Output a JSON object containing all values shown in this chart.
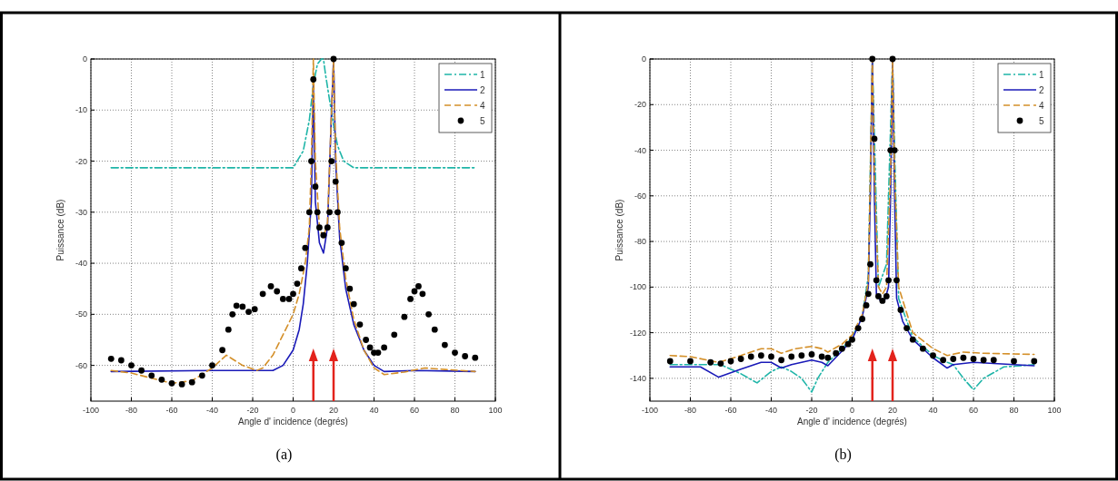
{
  "chart_data": [
    {
      "type": "line",
      "xlabel": "Angle d' incidence (degrés)",
      "ylabel": "Puissance (dB)",
      "xlim": [
        -100,
        100
      ],
      "xticks": [
        -100,
        -80,
        -60,
        -40,
        -20,
        0,
        20,
        40,
        60,
        80,
        100
      ],
      "ylim": [
        -67,
        0
      ],
      "yticks": [
        -60,
        -50,
        -40,
        -30,
        -20,
        -10,
        0
      ],
      "grid": true,
      "legend": "top right",
      "annotations": [
        "(a)"
      ],
      "ref_lines": [
        {
          "axis": "x",
          "value": 10,
          "color": "#e3231c"
        },
        {
          "axis": "x",
          "value": 20,
          "color": "#e3231c"
        }
      ],
      "series": [
        {
          "name": "1",
          "color": "#1fb5a8",
          "line_style": "dashdot",
          "x": [
            -90,
            -60,
            -30,
            0,
            5,
            8,
            10,
            12,
            14,
            15,
            16,
            18,
            20,
            22,
            25,
            30,
            60,
            90
          ],
          "values": [
            -21.3,
            -21.3,
            -21.3,
            -21.3,
            -18,
            -12,
            -5,
            -1,
            0,
            0,
            -3,
            -8,
            -13,
            -17,
            -20,
            -21.3,
            -21.3,
            -21.3
          ]
        },
        {
          "name": "2",
          "color": "#1a1ab8",
          "line_style": "solid",
          "x": [
            -90,
            -40,
            -10,
            -5,
            0,
            3,
            5,
            7,
            9,
            10,
            11,
            13,
            15,
            17,
            19,
            20,
            21,
            23,
            26,
            30,
            35,
            40,
            45,
            60,
            90
          ],
          "values": [
            -61.2,
            -61,
            -61,
            -60,
            -57,
            -53,
            -48,
            -40,
            -28,
            -5,
            -28,
            -36,
            -38,
            -33,
            -10,
            0,
            -20,
            -35,
            -45,
            -52,
            -57,
            -60,
            -61.2,
            -61,
            -61.2
          ]
        },
        {
          "name": "4",
          "color": "#d4902a",
          "line_style": "dashed",
          "x": [
            -90,
            -80,
            -70,
            -60,
            -50,
            -40,
            -33,
            -25,
            -18,
            -15,
            -10,
            -5,
            0,
            3,
            6,
            8,
            9,
            10,
            11,
            13,
            15,
            17,
            19,
            20,
            21,
            23,
            26,
            30,
            35,
            40,
            45,
            55,
            65,
            75,
            90
          ],
          "values": [
            -61,
            -61.5,
            -62.5,
            -63.5,
            -63,
            -60.5,
            -58,
            -60,
            -61,
            -60.5,
            -58,
            -54,
            -50,
            -46,
            -40,
            -33,
            -20,
            0,
            -20,
            -33,
            -35,
            -32,
            -10,
            0,
            -18,
            -33,
            -43,
            -51,
            -57,
            -60.5,
            -61.8,
            -61.3,
            -60.5,
            -60.8,
            -61.2
          ]
        },
        {
          "name": "5",
          "color": "#000000",
          "type": "scatter",
          "marker": "circle",
          "x": [
            -90,
            -85,
            -80,
            -75,
            -70,
            -65,
            -60,
            -55,
            -50,
            -45,
            -40,
            -35,
            -32,
            -30,
            -28,
            -25,
            -22,
            -19,
            -15,
            -11,
            -8,
            -5,
            -2,
            0,
            2,
            4,
            6,
            8,
            9,
            10,
            11,
            12,
            13,
            15,
            17,
            18,
            19,
            20,
            21,
            22,
            24,
            26,
            28,
            30,
            33,
            36,
            38,
            40,
            42,
            45,
            50,
            55,
            58,
            60,
            62,
            64,
            67,
            70,
            75,
            80,
            85,
            90
          ],
          "values": [
            -58.7,
            -59,
            -60,
            -61,
            -62,
            -62.8,
            -63.5,
            -63.7,
            -63.3,
            -62,
            -60,
            -57,
            -53,
            -50,
            -48.3,
            -48.5,
            -49.5,
            -49,
            -46,
            -44.5,
            -45.5,
            -47,
            -47,
            -46,
            -44,
            -41,
            -37,
            -30,
            -20,
            -4,
            -25,
            -30,
            -33,
            -34.5,
            -33,
            -30,
            -20,
            0,
            -24,
            -30,
            -36,
            -41,
            -45,
            -48,
            -52,
            -55,
            -56.5,
            -57.5,
            -57.5,
            -56.5,
            -54,
            -50.5,
            -47,
            -45.5,
            -44.5,
            -46,
            -50,
            -53,
            -56,
            -57.5,
            -58.2,
            -58.5
          ]
        }
      ]
    },
    {
      "type": "line",
      "xlabel": "Angle d' incidence (degrés)",
      "ylabel": "Puissance (dB)",
      "xlim": [
        -100,
        100
      ],
      "xticks": [
        -100,
        -80,
        -60,
        -40,
        -20,
        0,
        20,
        40,
        60,
        80,
        100
      ],
      "ylim": [
        -150,
        0
      ],
      "yticks": [
        -140,
        -120,
        -100,
        -80,
        -60,
        -40,
        -20,
        0
      ],
      "grid": true,
      "legend": "top right",
      "annotations": [
        "(b)"
      ],
      "ref_lines": [
        {
          "axis": "x",
          "value": 10,
          "color": "#e3231c"
        },
        {
          "axis": "x",
          "value": 20,
          "color": "#e3231c"
        }
      ],
      "series": [
        {
          "name": "1",
          "color": "#1fb5a8",
          "line_style": "dashdot",
          "x": [
            -90,
            -65,
            -55,
            -47,
            -40,
            -35,
            -30,
            -25,
            -20,
            -17,
            -12,
            -5,
            0,
            5,
            8,
            10,
            13,
            15,
            17,
            19,
            20,
            21,
            23,
            30,
            40,
            47,
            50,
            55,
            60,
            65,
            75,
            90
          ],
          "values": [
            -134,
            -134,
            -138,
            -142,
            -137,
            -135,
            -137,
            -140,
            -146,
            -140,
            -133,
            -127,
            -122,
            -113,
            -95,
            0,
            -100,
            -95,
            -90,
            -30,
            0,
            -40,
            -105,
            -122,
            -130,
            -133,
            -134,
            -140,
            -145,
            -140,
            -135,
            -134
          ]
        },
        {
          "name": "2",
          "color": "#1a1ab8",
          "line_style": "solid",
          "x": [
            -90,
            -75,
            -66,
            -55,
            -45,
            -40,
            -35,
            -30,
            -20,
            -15,
            -12,
            -5,
            0,
            5,
            8,
            9,
            10,
            11,
            12,
            14,
            16,
            18,
            19,
            20,
            21,
            22,
            25,
            30,
            40,
            47,
            50,
            60,
            90
          ],
          "values": [
            -135,
            -135,
            -139.5,
            -136,
            -133,
            -133,
            -135.5,
            -134,
            -132,
            -133,
            -134.5,
            -128,
            -123,
            -113,
            -100,
            -60,
            0,
            -60,
            -103,
            -106,
            -106,
            -100,
            -60,
            0,
            -60,
            -105,
            -115,
            -123,
            -131,
            -135.5,
            -134,
            -133,
            -134.5
          ]
        },
        {
          "name": "4",
          "color": "#d4902a",
          "line_style": "dashed",
          "x": [
            -90,
            -80,
            -66,
            -55,
            -45,
            -40,
            -35,
            -28,
            -20,
            -15,
            -12,
            -5,
            0,
            5,
            8,
            9,
            10,
            11,
            13,
            15,
            17,
            19,
            20,
            21,
            23,
            30,
            40,
            47,
            55,
            65,
            90
          ],
          "values": [
            -130,
            -130.5,
            -133,
            -130,
            -127,
            -127,
            -129,
            -127,
            -126,
            -127,
            -128.5,
            -125,
            -121,
            -112,
            -98,
            -50,
            0,
            -50,
            -100,
            -103,
            -100,
            -50,
            0,
            -50,
            -100,
            -120,
            -127,
            -130,
            -128.5,
            -129,
            -129.5
          ]
        },
        {
          "name": "5",
          "color": "#000000",
          "type": "scatter",
          "marker": "circle",
          "x": [
            -90,
            -80,
            -70,
            -65,
            -60,
            -55,
            -50,
            -45,
            -40,
            -35,
            -30,
            -25,
            -20,
            -15,
            -12,
            -8,
            -5,
            -2,
            0,
            3,
            5,
            7,
            8,
            9,
            10,
            11,
            12,
            13,
            15,
            17,
            18,
            19,
            20,
            21,
            22,
            24,
            27,
            30,
            35,
            40,
            45,
            50,
            55,
            60,
            65,
            70,
            80,
            90
          ],
          "values": [
            -132.5,
            -132.5,
            -133,
            -133.5,
            -132.5,
            -131.5,
            -130.5,
            -130,
            -130.5,
            -132,
            -130.5,
            -130,
            -129.5,
            -130.5,
            -131,
            -129,
            -127,
            -125,
            -123,
            -118,
            -114,
            -108,
            -103,
            -90,
            0,
            -35,
            -97,
            -104,
            -106,
            -104,
            -97,
            -40,
            0,
            -40,
            -97,
            -110,
            -118,
            -123,
            -127,
            -130,
            -132,
            -131.5,
            -131,
            -131.5,
            -132,
            -132,
            -132.5,
            -132.5
          ]
        }
      ]
    }
  ]
}
